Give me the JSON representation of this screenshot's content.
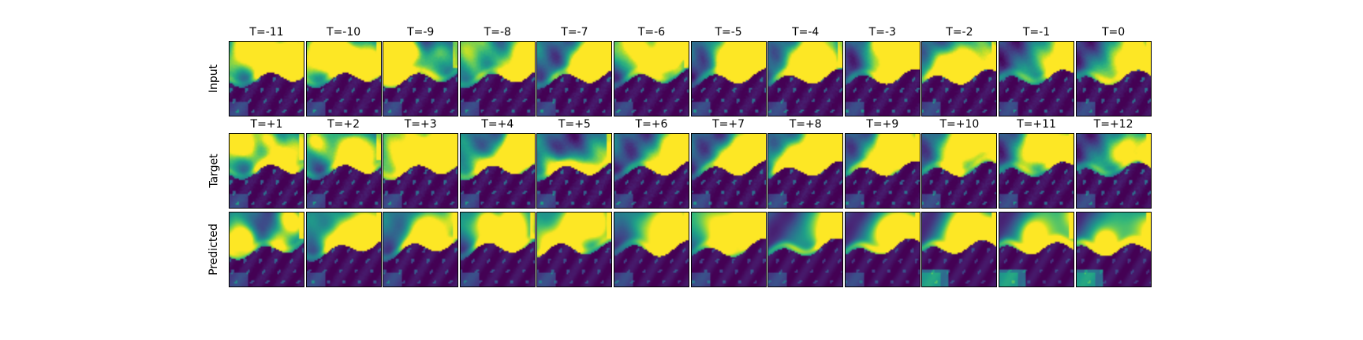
{
  "figure": {
    "colormap": "viridis",
    "rows": [
      {
        "label": "Input",
        "titles": [
          "T=-11",
          "T=-10",
          "T=-9",
          "T=-8",
          "T=-7",
          "T=-6",
          "T=-5",
          "T=-4",
          "T=-3",
          "T=-2",
          "T=-1",
          "T=0"
        ]
      },
      {
        "label": "Target",
        "titles": [
          "T=+1",
          "T=+2",
          "T=+3",
          "T=+4",
          "T=+5",
          "T=+6",
          "T=+7",
          "T=+8",
          "T=+9",
          "T=+10",
          "T=+11",
          "T=+12"
        ]
      },
      {
        "label": "Predicted",
        "titles": []
      }
    ]
  }
}
